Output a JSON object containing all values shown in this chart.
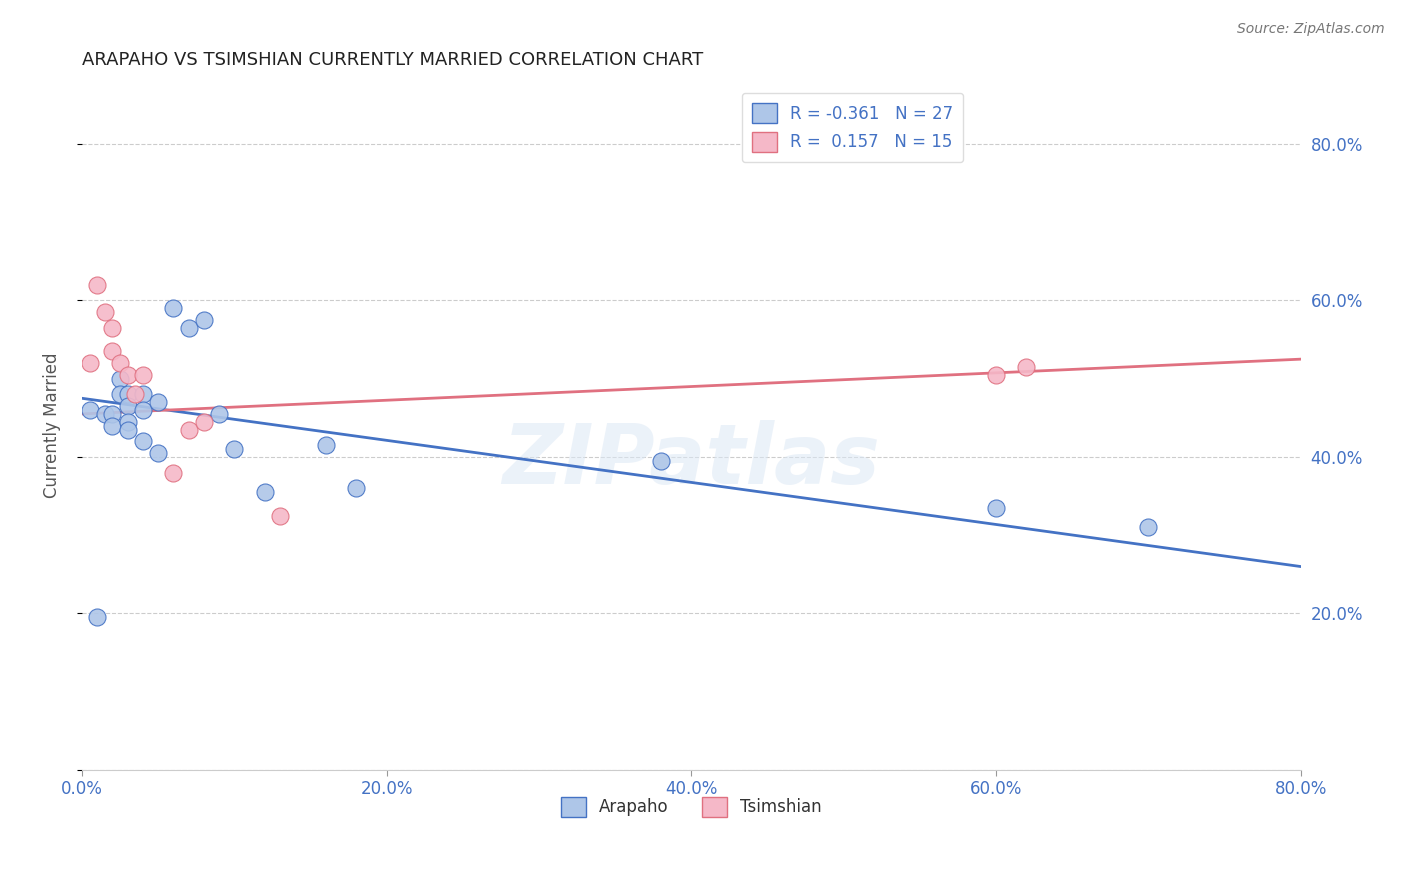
{
  "title": "ARAPAHO VS TSIMSHIAN CURRENTLY MARRIED CORRELATION CHART",
  "source": "Source: ZipAtlas.com",
  "ylabel": "Currently Married",
  "arapaho_x": [
    0.005,
    0.01,
    0.015,
    0.02,
    0.02,
    0.025,
    0.025,
    0.03,
    0.03,
    0.03,
    0.03,
    0.04,
    0.04,
    0.04,
    0.05,
    0.05,
    0.06,
    0.07,
    0.08,
    0.09,
    0.1,
    0.12,
    0.16,
    0.18,
    0.38,
    0.6,
    0.7
  ],
  "arapaho_y": [
    0.46,
    0.195,
    0.455,
    0.455,
    0.44,
    0.5,
    0.48,
    0.48,
    0.465,
    0.445,
    0.435,
    0.48,
    0.46,
    0.42,
    0.47,
    0.405,
    0.59,
    0.565,
    0.575,
    0.455,
    0.41,
    0.355,
    0.415,
    0.36,
    0.395,
    0.335,
    0.31
  ],
  "tsimshian_x": [
    0.005,
    0.01,
    0.015,
    0.02,
    0.02,
    0.025,
    0.03,
    0.035,
    0.04,
    0.06,
    0.07,
    0.08,
    0.13,
    0.6,
    0.62
  ],
  "tsimshian_y": [
    0.52,
    0.62,
    0.585,
    0.565,
    0.535,
    0.52,
    0.505,
    0.48,
    0.505,
    0.38,
    0.435,
    0.445,
    0.325,
    0.505,
    0.515
  ],
  "arapaho_R": -0.361,
  "arapaho_N": 27,
  "tsimshian_R": 0.157,
  "tsimshian_N": 15,
  "arapaho_color": "#aec6e8",
  "tsimshian_color": "#f5b8c8",
  "arapaho_line_color": "#4472c4",
  "tsimshian_line_color": "#e07080",
  "background_color": "#ffffff",
  "watermark": "ZIPatlas",
  "xlim": [
    0.0,
    0.8
  ],
  "ylim": [
    0.0,
    0.88
  ],
  "x_ticks": [
    0.0,
    0.2,
    0.4,
    0.6,
    0.8
  ],
  "y_ticks": [
    0.0,
    0.2,
    0.4,
    0.6,
    0.8
  ],
  "blue_line_x0": 0.0,
  "blue_line_y0": 0.475,
  "blue_line_x1": 0.8,
  "blue_line_y1": 0.26,
  "pink_line_x0": 0.0,
  "pink_line_y0": 0.455,
  "pink_line_x1": 0.8,
  "pink_line_y1": 0.525
}
